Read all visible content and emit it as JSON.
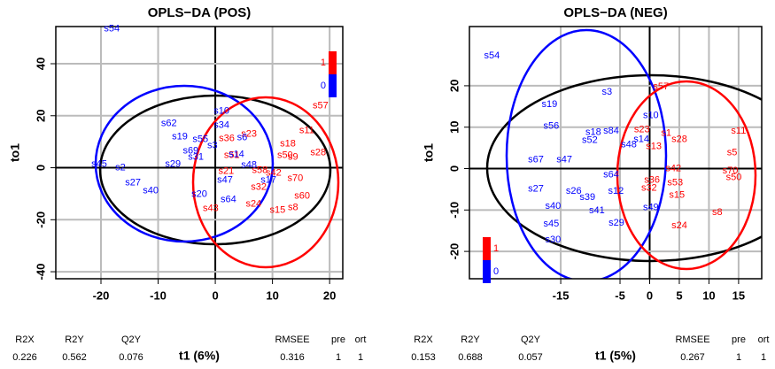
{
  "chart_data": [
    {
      "type": "scatter",
      "title": "OPLS−DA (POS)",
      "xlabel": "t1 (6%)",
      "ylabel": "to1",
      "xlim": [
        -27.9,
        22.3
      ],
      "ylim": [
        -42.7,
        54.3
      ],
      "xticks": [
        -20,
        -10,
        0,
        10,
        20
      ],
      "yticks": [
        -40,
        -20,
        0,
        20,
        40
      ],
      "grid": true,
      "legend": "topright",
      "series": [
        {
          "name": "1",
          "color": "#ff0000",
          "labels": [
            "s57",
            "s11",
            "s18",
            "s50",
            "s9",
            "s28",
            "s23",
            "s36",
            "s70",
            "s60",
            "s8",
            "s15",
            "s24",
            "s32",
            "s42",
            "s58",
            "s21",
            "s43",
            "s51"
          ],
          "x": [
            18.4,
            16.0,
            12.7,
            12.2,
            13.6,
            18.0,
            5.9,
            2.0,
            14.0,
            15.2,
            13.6,
            10.9,
            6.7,
            7.6,
            10.2,
            7.8,
            1.9,
            -0.8,
            2.9
          ],
          "y": [
            23.8,
            14.3,
            9.2,
            4.8,
            4.1,
            5.8,
            12.9,
            11.2,
            -4.1,
            -10.9,
            -15.3,
            -16.3,
            -13.9,
            -7.5,
            -2.0,
            -1.0,
            -1.4,
            -15.6,
            4.8
          ]
        },
        {
          "name": "0",
          "color": "#0000ff",
          "labels": [
            "s54",
            "s62",
            "s19",
            "s69",
            "s29",
            "s31",
            "s45",
            "s2",
            "s27",
            "s40",
            "s10",
            "s34",
            "s55",
            "s3",
            "s14",
            "s48",
            "s17",
            "s47",
            "s6",
            "s20",
            "s64"
          ],
          "x": [
            -18.1,
            -8.1,
            -6.2,
            -4.3,
            -7.4,
            -3.4,
            -20.3,
            -16.6,
            -14.4,
            -11.3,
            1.1,
            1.1,
            -2.6,
            -0.5,
            3.7,
            5.9,
            9.3,
            1.7,
            4.7,
            -2.8,
            2.3
          ],
          "y": [
            53.4,
            17.0,
            11.9,
            6.5,
            1.4,
            4.1,
            1.4,
            0,
            -5.8,
            -8.8,
            21.8,
            16.3,
            10.9,
            8.5,
            5.1,
            1.0,
            -4.8,
            -4.8,
            11.6,
            -10.2,
            -12.2
          ]
        }
      ],
      "stats": {
        "labels": [
          "R2X",
          "R2Y",
          "Q2Y",
          "RMSEE",
          "pre",
          "ort"
        ],
        "values": [
          0.226,
          0.562,
          0.076,
          0.316,
          1,
          1
        ]
      }
    },
    {
      "type": "scatter",
      "title": "OPLS−DA (NEG)",
      "xlabel": "t1 (5%)",
      "ylabel": "to1",
      "xlim": [
        -30.4,
        18.9
      ],
      "ylim": [
        -26.6,
        34.3
      ],
      "xticks": [
        -15,
        -5,
        0,
        5,
        10,
        15
      ],
      "yticks": [
        -20,
        -10,
        0,
        10,
        20
      ],
      "grid": true,
      "legend": "bottomleft",
      "series": [
        {
          "name": "1",
          "color": "#ff0000",
          "labels": [
            "s57",
            "s11",
            "s1",
            "s28",
            "s23",
            "s13",
            "s5",
            "s70",
            "s50",
            "s42",
            "s53",
            "s36",
            "s32",
            "s15",
            "s8",
            "s24"
          ],
          "x": [
            1.9,
            15.0,
            2.8,
            5.0,
            -1.3,
            0.7,
            13.9,
            13.6,
            14.2,
            4.0,
            4.3,
            0.4,
            -0.1,
            4.6,
            11.4,
            5.0
          ],
          "y": [
            19.8,
            9.1,
            8.5,
            7.0,
            9.4,
            5.3,
            3.8,
            -0.6,
            -2.1,
            0,
            -3.4,
            -2.8,
            -4.7,
            -6.4,
            -10.6,
            -13.8
          ]
        },
        {
          "name": "0",
          "color": "#0000ff",
          "labels": [
            "s54",
            "s3",
            "s19",
            "s56",
            "s10",
            "s52",
            "s18",
            "s84",
            "s14",
            "s48",
            "s67",
            "s47",
            "s64",
            "s27",
            "s26",
            "s12",
            "s39",
            "s40",
            "s41",
            "s45",
            "s30",
            "s29",
            "s49"
          ],
          "x": [
            -26.6,
            -7.2,
            -16.9,
            -16.6,
            0.2,
            -10.1,
            -9.5,
            -6.5,
            -1.4,
            -3.5,
            -19.2,
            -14.4,
            -6.5,
            -19.2,
            -12.8,
            -5.7,
            -10.5,
            -16.3,
            -8.9,
            -16.6,
            -16.3,
            -5.6,
            0.2
          ],
          "y": [
            27.2,
            18.5,
            15.5,
            10.2,
            12.8,
            6.8,
            8.7,
            9.1,
            7.0,
            5.7,
            2.1,
            2.1,
            -1.5,
            -4.9,
            -5.5,
            -5.5,
            -7.0,
            -9.1,
            -10.2,
            -13.4,
            -17.2,
            -13.2,
            -9.4
          ]
        }
      ],
      "stats": {
        "labels": [
          "R2X",
          "R2Y",
          "Q2Y",
          "RMSEE",
          "pre",
          "ort"
        ],
        "values": [
          0.153,
          0.688,
          0.057,
          0.267,
          1,
          1
        ]
      }
    }
  ]
}
